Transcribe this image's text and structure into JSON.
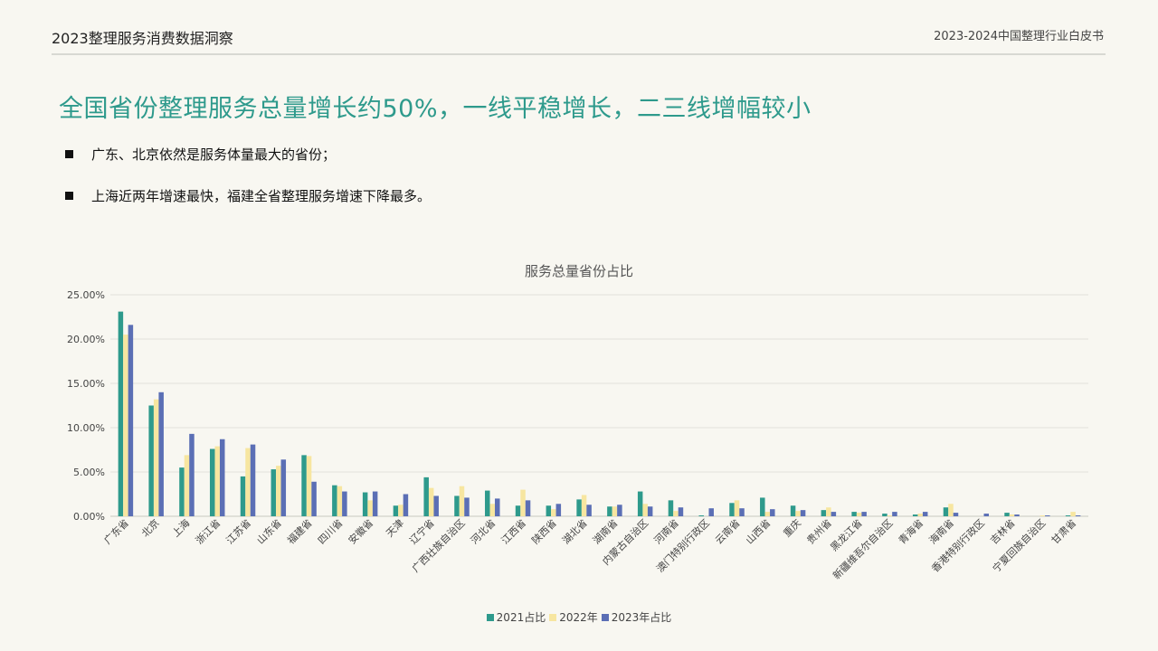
{
  "header": {
    "left_title": "2023整理服务消费数据洞察",
    "right_title": "2023-2024中国整理行业白皮书"
  },
  "headline": "全国省份整理服务总量增长约50%，一线平稳增长，二三线增幅较小",
  "bullets": [
    "广东、北京依然是服务体量最大的省份；",
    "上海近两年增速最快，福建全省整理服务增速下降最多。"
  ],
  "colors": {
    "accent": "#2e9a8c",
    "series": [
      "#2e9a8c",
      "#f7e6a0",
      "#5b6fb5"
    ]
  },
  "chart_data": {
    "type": "bar",
    "title": "服务总量省份占比",
    "ylim": [
      0,
      25
    ],
    "yticks": [
      "0.00%",
      "5.00%",
      "10.00%",
      "15.00%",
      "20.00%",
      "25.00%"
    ],
    "grid": true,
    "legend_position": "bottom",
    "categories": [
      "广东省",
      "北京",
      "上海",
      "浙江省",
      "江苏省",
      "山东省",
      "福建省",
      "四川省",
      "安徽省",
      "天津",
      "辽宁省",
      "广西壮族自治区",
      "河北省",
      "江西省",
      "陕西省",
      "湖北省",
      "湖南省",
      "内蒙古自治区",
      "河南省",
      "澳门特别行政区",
      "云南省",
      "山西省",
      "重庆",
      "贵州省",
      "黑龙江省",
      "新疆维吾尔自治区",
      "青海省",
      "海南省",
      "香港特别行政区",
      "吉林省",
      "宁夏回族自治区",
      "甘肃省"
    ],
    "series": [
      {
        "name": "2021占比",
        "values": [
          23.1,
          12.5,
          5.5,
          7.6,
          4.5,
          5.3,
          6.9,
          3.5,
          2.7,
          1.2,
          4.4,
          2.3,
          2.9,
          1.2,
          1.2,
          1.9,
          1.1,
          2.8,
          1.8,
          0.1,
          1.5,
          2.1,
          1.2,
          0.7,
          0.5,
          0.3,
          0.2,
          1.0,
          0.0,
          0.4,
          0.0,
          0.1
        ]
      },
      {
        "name": "2022年",
        "values": [
          20.5,
          13.2,
          6.9,
          7.9,
          7.7,
          5.7,
          6.8,
          3.4,
          1.8,
          1.3,
          3.2,
          3.4,
          1.4,
          3.0,
          0.8,
          2.4,
          1.1,
          1.4,
          0.6,
          0.0,
          1.8,
          0.5,
          0.6,
          1.0,
          0.4,
          0.1,
          0.3,
          1.4,
          0.0,
          0.2,
          0.1,
          0.5
        ]
      },
      {
        "name": "2023年占比",
        "values": [
          21.6,
          14.0,
          9.3,
          8.7,
          8.1,
          6.4,
          3.9,
          2.8,
          2.8,
          2.5,
          2.3,
          2.1,
          2.0,
          1.8,
          1.4,
          1.3,
          1.3,
          1.1,
          1.0,
          0.9,
          0.9,
          0.8,
          0.7,
          0.5,
          0.5,
          0.5,
          0.5,
          0.4,
          0.3,
          0.2,
          0.1,
          0.1
        ]
      }
    ]
  }
}
